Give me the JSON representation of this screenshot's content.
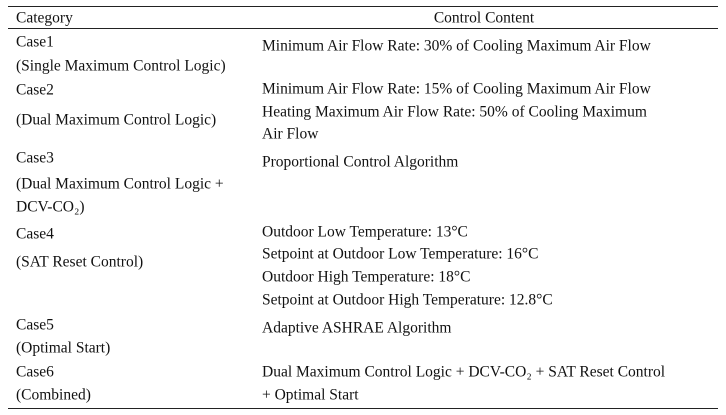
{
  "table": {
    "header": {
      "category": "Category",
      "content": "Control Content"
    },
    "rows": [
      {
        "category": [
          "Case1",
          "(Single Maximum Control Logic)"
        ],
        "content": [
          "Minimum Air Flow Rate: 30% of Cooling Maximum Air Flow"
        ]
      },
      {
        "category": [
          "Case2",
          "(Dual Maximum Control Logic)"
        ],
        "content": [
          "Minimum Air Flow Rate: 15% of Cooling Maximum Air Flow",
          "Heating Maximum Air Flow Rate: 50% of Cooling Maximum",
          "Air Flow"
        ]
      },
      {
        "category": [
          "Case3",
          "(Dual Maximum Control Logic +",
          "DCV-CO₂)"
        ],
        "content": [
          "Proportional Control Algorithm"
        ]
      },
      {
        "category": [
          "Case4",
          "(SAT Reset Control)"
        ],
        "content": [
          "Outdoor Low Temperature: 13°C",
          "Setpoint at Outdoor Low Temperature: 16°C",
          "Outdoor High Temperature: 18°C",
          "Setpoint at Outdoor High Temperature: 12.8°C"
        ]
      },
      {
        "category": [
          "Case5",
          "(Optimal Start)"
        ],
        "content": [
          "Adaptive ASHRAE Algorithm"
        ]
      },
      {
        "category": [
          "Case6",
          "(Combined)"
        ],
        "content": [
          "Dual Maximum Control Logic + DCV-CO₂ + SAT Reset Control",
          "+ Optimal Start"
        ]
      }
    ]
  }
}
